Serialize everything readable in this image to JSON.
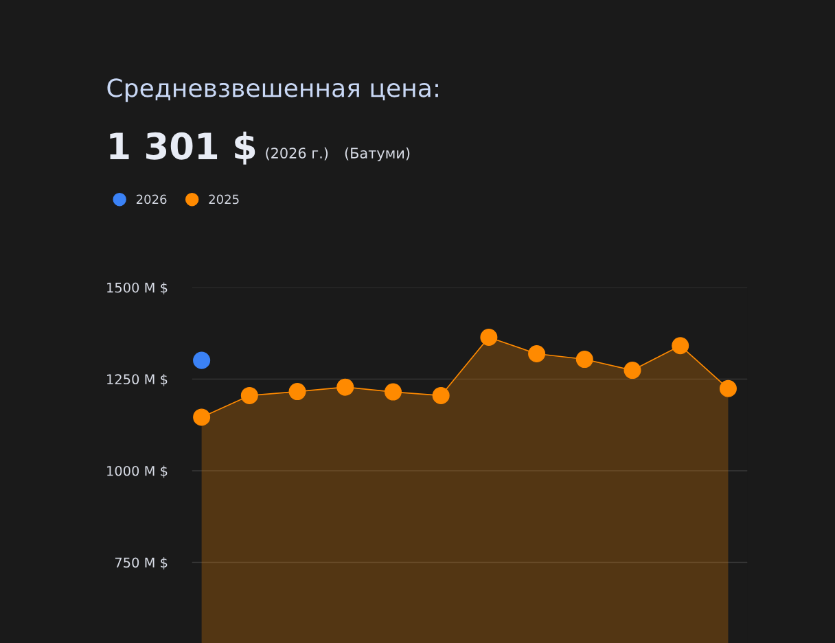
{
  "chart_data": {
    "type": "area",
    "title": "Средневзвешенная цена:",
    "subtitle": "1 301 $",
    "annotations": [
      "(2026 г.)",
      "(Батуми)"
    ],
    "categories": [
      null,
      null,
      null,
      null,
      null,
      null,
      null,
      null,
      null,
      null,
      null,
      null
    ],
    "series": [
      {
        "name": "2026",
        "type": "scatter",
        "color": "#3b82f6",
        "values": [
          1301,
          null,
          null,
          null,
          null,
          null,
          null,
          null,
          null,
          null,
          null,
          null
        ]
      },
      {
        "name": "2025",
        "color": "#ff8a00",
        "values": [
          1146,
          1205,
          1216,
          1228,
          1215,
          1205,
          1364,
          1319,
          1304,
          1274,
          1341,
          1224
        ]
      }
    ],
    "ylim": [
      530,
      1500
    ],
    "yticks": [
      {
        "value": 750,
        "label": "750 M $"
      },
      {
        "value": 1000,
        "label": "1000 M $"
      },
      {
        "value": 1250,
        "label": "1250 M $"
      },
      {
        "value": 1500,
        "label": "1500 M $"
      }
    ],
    "grid": "y",
    "legend": "top left",
    "marker": "circle",
    "line_style": "solid"
  }
}
